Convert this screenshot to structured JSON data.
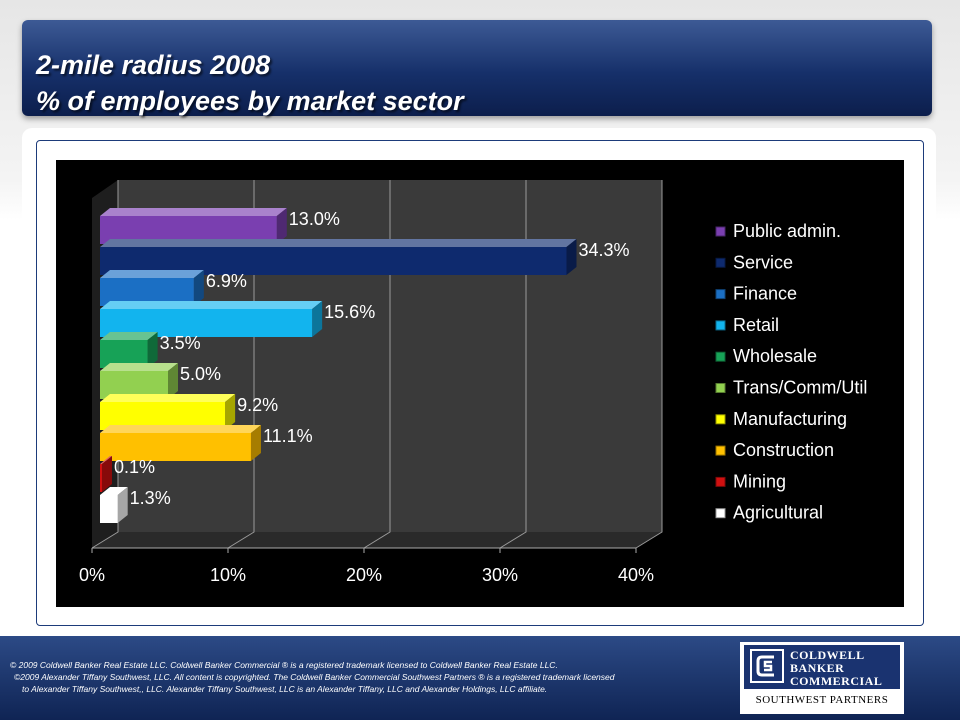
{
  "header": {
    "title_line1": "2-mile radius 2008",
    "title_line2": "% of employees by market sector"
  },
  "chart_data": {
    "type": "bar",
    "orientation": "horizontal",
    "style": "3d",
    "categories": [
      "Public admin.",
      "Service",
      "Finance",
      "Retail",
      "Wholesale",
      "Trans/Comm/Util",
      "Manufacturing",
      "Construction",
      "Mining",
      "Agricultural"
    ],
    "values": [
      13.0,
      34.3,
      6.9,
      15.6,
      3.5,
      5.0,
      9.2,
      11.1,
      0.1,
      1.3
    ],
    "value_labels": [
      "13.0%",
      "34.3%",
      "6.9%",
      "15.6%",
      "3.5%",
      "5.0%",
      "9.2%",
      "11.1%",
      "0.1%",
      "1.3%"
    ],
    "colors": [
      "#7a3fb0",
      "#0e2a6e",
      "#1b6fc4",
      "#12b4ee",
      "#17a257",
      "#92d050",
      "#ffff00",
      "#ffc000",
      "#d01010",
      "#ffffff"
    ],
    "xlim": [
      0,
      40
    ],
    "x_ticks": [
      0,
      10,
      20,
      30,
      40
    ],
    "x_tick_labels": [
      "0%",
      "10%",
      "20%",
      "30%",
      "40%"
    ],
    "grid": true,
    "legend": "right",
    "background": "#000000",
    "wall_color": "#3a3a3a"
  },
  "footer": {
    "copyright_line1": "©  2009 Coldwell Banker Real Estate LLC. Coldwell Banker Commercial ® is a registered trademark licensed to Coldwell Banker Real Estate LLC.",
    "copyright_line2": "©2009 Alexander Tiffany Southwest, LLC. All content is copyrighted. The Coldwell Banker Commercial Southwest Partners ® is a registered trademark licensed",
    "copyright_line3": "to Alexander Tiffany Southwest,, LLC.  Alexander Tiffany Southwest, LLC is an Alexander Tiffany, LLC and Alexander Holdings, LLC affiliate.",
    "logo_line1": "COLDWELL",
    "logo_line2": "BANKER",
    "logo_line3": "COMMERCIAL",
    "logo_subtitle": "SOUTHWEST PARTNERS"
  }
}
